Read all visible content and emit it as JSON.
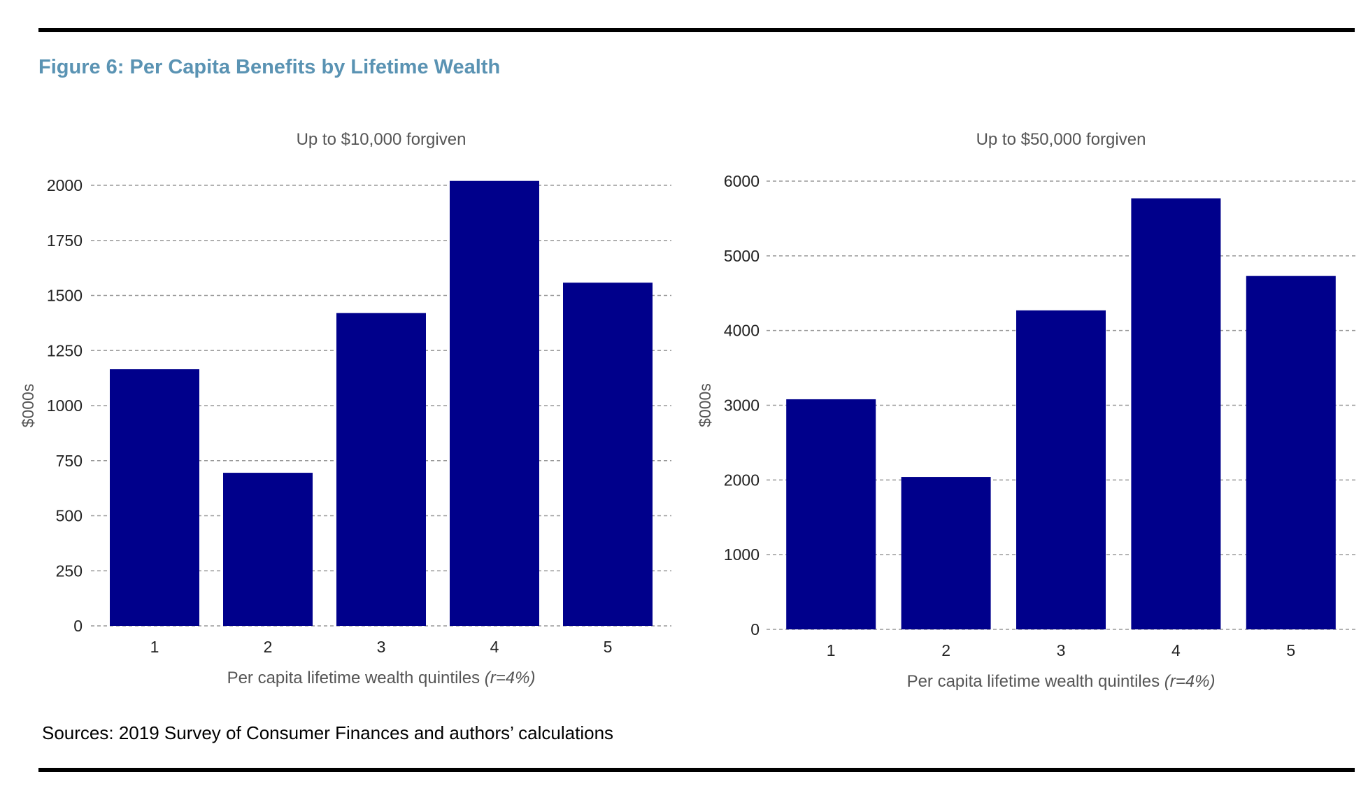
{
  "figure_title": "Figure 6: Per Capita Benefits by Lifetime Wealth",
  "sources": "Sources: 2019 Survey of Consumer Finances and authors’ calculations",
  "colors": {
    "bar": "#00008b",
    "title": "#5a93b3",
    "grid": "#999999",
    "text": "#555555"
  },
  "chart_data": [
    {
      "type": "bar",
      "title": "Up to $10,000 forgiven",
      "categories": [
        "1",
        "2",
        "3",
        "4",
        "5"
      ],
      "values": [
        1165,
        695,
        1420,
        2020,
        1558
      ],
      "ylabel": "$000s",
      "xlabel": "Per capita lifetime wealth quintiles",
      "xlabel_italic": "(r=4%)",
      "ylim": [
        0,
        2000
      ],
      "yticks": [
        0,
        250,
        500,
        750,
        1000,
        1250,
        1500,
        1750,
        2000
      ],
      "grid": true
    },
    {
      "type": "bar",
      "title": "Up to $50,000 forgiven",
      "categories": [
        "1",
        "2",
        "3",
        "4",
        "5"
      ],
      "values": [
        3080,
        2040,
        4270,
        5770,
        4730
      ],
      "ylabel": "$000s",
      "xlabel": "Per capita lifetime wealth quintiles",
      "xlabel_italic": "(r=4%)",
      "ylim": [
        0,
        6000
      ],
      "yticks": [
        0,
        1000,
        2000,
        3000,
        4000,
        5000,
        6000
      ],
      "grid": true
    }
  ]
}
